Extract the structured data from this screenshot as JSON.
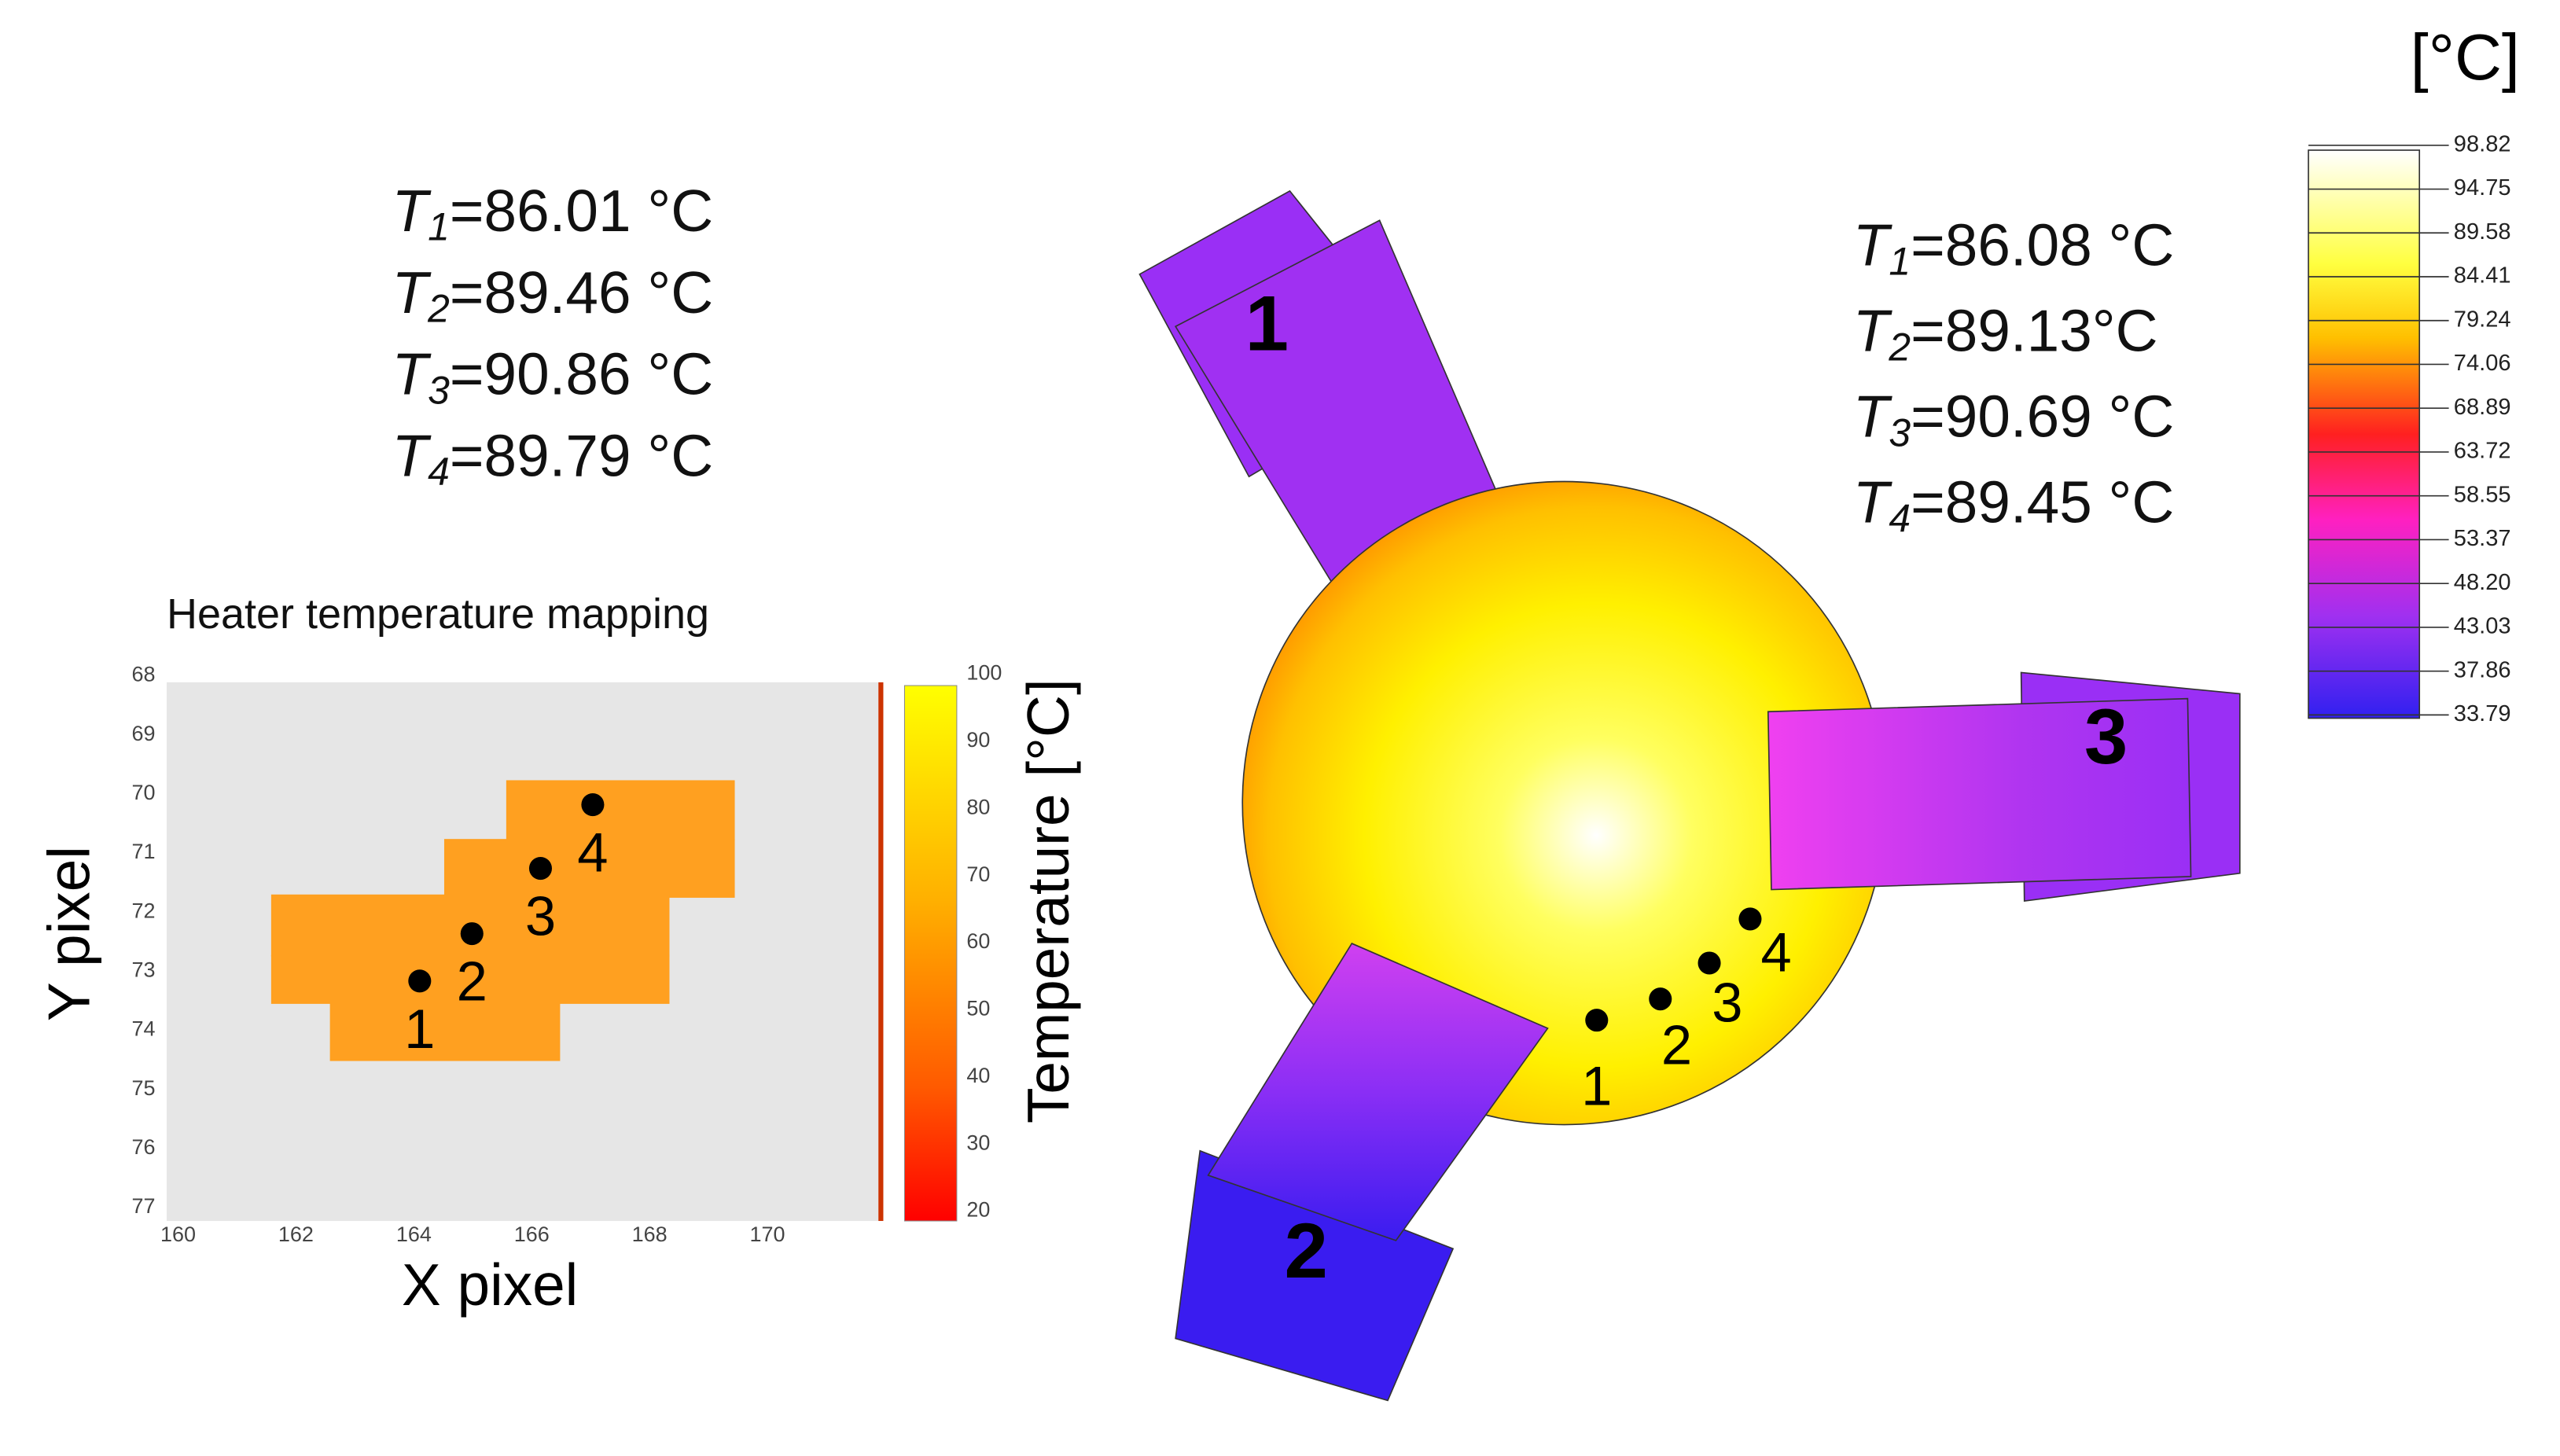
{
  "left_panel": {
    "readings": [
      {
        "symbol": "T",
        "index": "1",
        "value": "=86.01 °C"
      },
      {
        "symbol": "T",
        "index": "2",
        "value": "=89.46 °C"
      },
      {
        "symbol": "T",
        "index": "3",
        "value": "=90.86 °C"
      },
      {
        "symbol": "T",
        "index": "4",
        "value": "=89.79 °C"
      }
    ],
    "heatmap": {
      "title": "Heater temperature mapping",
      "x_axis_label": "X pixel",
      "y_axis_label": "Y pixel",
      "xticks": [
        160,
        162,
        164,
        166,
        168,
        170
      ],
      "yticks": [
        68,
        69,
        70,
        71,
        72,
        73,
        74,
        75,
        76,
        77
      ],
      "colorbar_label": "Temperature [°C]",
      "colorbar_ticks": [
        100,
        90,
        80,
        70,
        60,
        50,
        40,
        30,
        20
      ],
      "points": [
        "1",
        "2",
        "3",
        "4"
      ]
    }
  },
  "right_panel": {
    "readings": [
      {
        "symbol": "T",
        "index": "1",
        "value": "=86.08 °C"
      },
      {
        "symbol": "T",
        "index": "2",
        "value": "=89.13°C"
      },
      {
        "symbol": "T",
        "index": "3",
        "value": "=90.69 °C"
      },
      {
        "symbol": "T",
        "index": "4",
        "value": "=89.45 °C"
      }
    ],
    "heaters": [
      "1",
      "2",
      "3"
    ],
    "points": [
      "1",
      "2",
      "3",
      "4"
    ],
    "colorbar": {
      "unit": "[°C]",
      "ticks": [
        "98.82",
        "94.75",
        "89.58",
        "84.41",
        "79.24",
        "74.06",
        "68.89",
        "63.72",
        "58.55",
        "53.37",
        "48.20",
        "43.03",
        "37.86",
        "33.79"
      ]
    }
  }
}
